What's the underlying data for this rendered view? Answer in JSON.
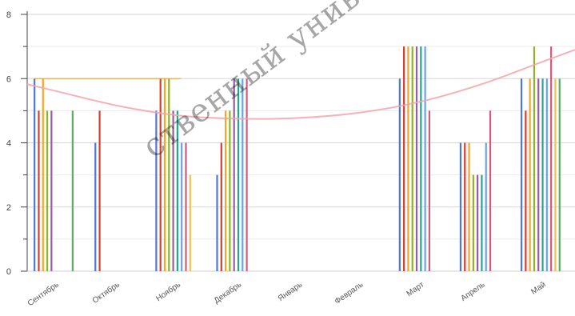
{
  "chart_data": {
    "type": "bar",
    "ylim": [
      0,
      8
    ],
    "yticks": [
      0,
      2,
      4,
      6,
      8
    ],
    "grid": true,
    "legend": "none",
    "categories": [
      "Сентябрь",
      "Октябрь",
      "Ноябрь",
      "Декабрь",
      "Январь",
      "Февраль",
      "Март",
      "Апрель",
      "Май"
    ],
    "series": [
      {
        "color": "#4c78d8",
        "values": [
          6,
          4,
          5,
          3,
          null,
          null,
          6,
          4,
          6
        ]
      },
      {
        "color": "#dc3b2e",
        "values": [
          5,
          5,
          6,
          4,
          null,
          null,
          7,
          4,
          5
        ]
      },
      {
        "color": "#f5a623",
        "values": [
          6,
          null,
          6,
          5,
          null,
          null,
          7,
          4,
          6
        ]
      },
      {
        "color": "#8fb228",
        "values": [
          5,
          null,
          6,
          5,
          null,
          null,
          7,
          3,
          7
        ]
      },
      {
        "color": "#9b5aa6",
        "values": [
          5,
          null,
          5,
          6,
          null,
          null,
          7,
          3,
          6
        ]
      },
      {
        "color": "#1fa88e",
        "values": [
          null,
          null,
          5,
          6,
          null,
          null,
          7,
          3,
          6
        ]
      },
      {
        "color": "#6aa3e6",
        "values": [
          null,
          null,
          4,
          6,
          null,
          null,
          7,
          4,
          6
        ]
      },
      {
        "color": "#d9567d",
        "values": [
          null,
          null,
          4,
          6,
          null,
          null,
          5,
          5,
          7
        ]
      },
      {
        "color": "#f2c04e",
        "values": [
          null,
          null,
          3,
          null,
          null,
          null,
          null,
          null,
          6
        ]
      },
      {
        "color": "#57b05f",
        "values": [
          5,
          null,
          null,
          null,
          null,
          null,
          null,
          null,
          6
        ]
      }
    ],
    "reference_lines": [
      {
        "color": "#d9a441",
        "x_from": "Сентябрь",
        "x_to": "Ноябрь",
        "y": 6
      }
    ],
    "trend_curve": {
      "color": "#f2a4aa",
      "x": [
        "Сентябрь",
        "Октябрь",
        "Ноябрь",
        "Декабрь",
        "Январь",
        "Февраль",
        "Март",
        "Апрель",
        "Май"
      ],
      "y": [
        5.6,
        5.15,
        4.85,
        4.75,
        4.78,
        4.95,
        5.3,
        5.85,
        6.55
      ]
    }
  },
  "watermark": {
    "text": "ственный университет им",
    "color": "#000000"
  }
}
